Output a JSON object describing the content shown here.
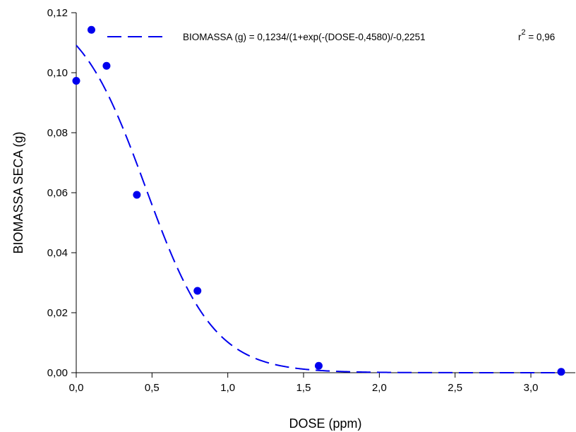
{
  "chart_data": {
    "type": "scatter",
    "xlabel": "DOSE (ppm)",
    "ylabel": "BIOMASSA SECA (g)",
    "xlim": [
      0,
      3.2
    ],
    "ylim": [
      0,
      0.12
    ],
    "x_ticks": [
      {
        "value": 0.0,
        "label": "0,0"
      },
      {
        "value": 0.5,
        "label": "0,5"
      },
      {
        "value": 1.0,
        "label": "1,0"
      },
      {
        "value": 1.5,
        "label": "1,5"
      },
      {
        "value": 2.0,
        "label": "2,0"
      },
      {
        "value": 2.5,
        "label": "2,5"
      },
      {
        "value": 3.0,
        "label": "3,0"
      }
    ],
    "y_ticks": [
      {
        "value": 0.0,
        "label": "0,00"
      },
      {
        "value": 0.02,
        "label": "0,02"
      },
      {
        "value": 0.04,
        "label": "0,04"
      },
      {
        "value": 0.06,
        "label": "0,06"
      },
      {
        "value": 0.08,
        "label": "0,08"
      },
      {
        "value": 0.1,
        "label": "0,10"
      },
      {
        "value": 0.12,
        "label": "0,12"
      }
    ],
    "grid": false,
    "series": [
      {
        "kind": "points",
        "marker": "circle",
        "color": "#0000ee",
        "points": [
          {
            "x": 0.0,
            "y": 0.0973
          },
          {
            "x": 0.1,
            "y": 0.1143
          },
          {
            "x": 0.2,
            "y": 0.1023
          },
          {
            "x": 0.4,
            "y": 0.0593
          },
          {
            "x": 0.8,
            "y": 0.0273
          },
          {
            "x": 1.6,
            "y": 0.0023
          },
          {
            "x": 3.2,
            "y": 0.0003
          }
        ]
      },
      {
        "kind": "fitted_curve",
        "line_style": "dashed",
        "color": "#0000ee",
        "model": {
          "a": 0.1234,
          "x0": 0.458,
          "b": -0.2251
        }
      }
    ],
    "legend": {
      "position": "top-right",
      "equation": "BIOMASSA (g) = 0,1234/(1+exp(-(DOSE-0,4580)/-0,2251",
      "r2_prefix": "r",
      "r2_exponent": "2",
      "r2_value": " = 0,96"
    }
  }
}
